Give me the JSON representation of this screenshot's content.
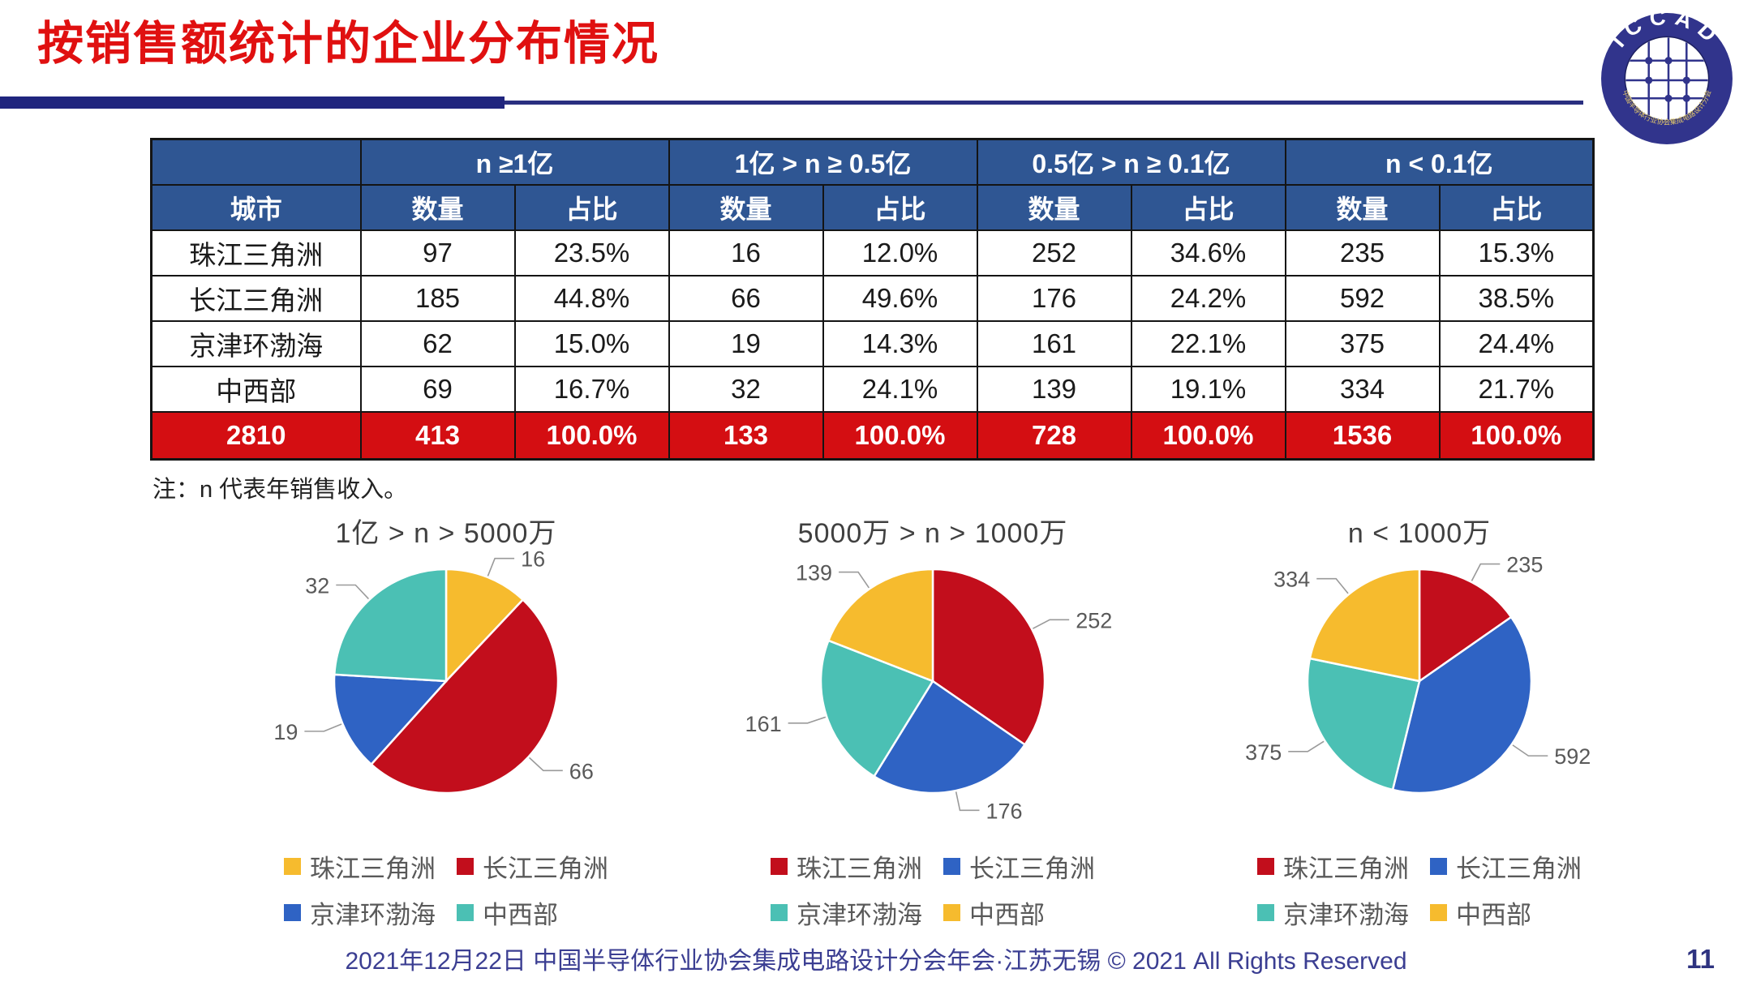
{
  "header": {
    "title": "按销售额统计的企业分布情况",
    "logo_text": "ICCAD",
    "logo_subtitle": "中国半导体行业协会集成电路设计分会"
  },
  "table": {
    "group_headers": [
      "n ≥1亿",
      "1亿 > n ≥ 0.5亿",
      "0.5亿 > n ≥ 0.1亿",
      "n < 0.1亿"
    ],
    "col_city": "城市",
    "col_count": "数量",
    "col_share": "占比",
    "rows": [
      [
        "珠江三角洲",
        "97",
        "23.5%",
        "16",
        "12.0%",
        "252",
        "34.6%",
        "235",
        "15.3%"
      ],
      [
        "长江三角洲",
        "185",
        "44.8%",
        "66",
        "49.6%",
        "176",
        "24.2%",
        "592",
        "38.5%"
      ],
      [
        "京津环渤海",
        "62",
        "15.0%",
        "19",
        "14.3%",
        "161",
        "22.1%",
        "375",
        "24.4%"
      ],
      [
        "中西部",
        "69",
        "16.7%",
        "32",
        "24.1%",
        "139",
        "19.1%",
        "334",
        "21.7%"
      ]
    ],
    "total_row": [
      "2810",
      "413",
      "100.0%",
      "133",
      "100.0%",
      "728",
      "100.0%",
      "1536",
      "100.0%"
    ]
  },
  "note": "注：n 代表年销售收入。",
  "chart_data": [
    {
      "type": "pie",
      "title": "1亿 > n > 5000万",
      "labels": [
        "珠江三角洲",
        "长江三角洲",
        "京津环渤海",
        "中西部"
      ],
      "values": [
        16,
        66,
        19,
        32
      ],
      "colors": [
        "#F6BB2E",
        "#C20E1C",
        "#2F63C4",
        "#4BC0B4"
      ],
      "legend_position": "bottom"
    },
    {
      "type": "pie",
      "title": "5000万 > n > 1000万",
      "labels": [
        "珠江三角洲",
        "长江三角洲",
        "京津环渤海",
        "中西部"
      ],
      "values": [
        252,
        176,
        161,
        139
      ],
      "colors": [
        "#C20E1C",
        "#2F63C4",
        "#4BC0B4",
        "#F6BB2E"
      ],
      "legend_position": "bottom"
    },
    {
      "type": "pie",
      "title": "n < 1000万",
      "labels": [
        "珠江三角洲",
        "长江三角洲",
        "京津环渤海",
        "中西部"
      ],
      "values": [
        235,
        592,
        375,
        334
      ],
      "colors": [
        "#C20E1C",
        "#2F63C4",
        "#4BC0B4",
        "#F6BB2E"
      ],
      "legend_position": "bottom"
    }
  ],
  "footer": {
    "text": "2021年12月22日 中国半导体行业协会集成电路设计分会年会·江苏无锡 © 2021 All Rights Reserved",
    "page": "11"
  },
  "colors": {
    "title_red": "#E01010",
    "header_navy": "#2F5693",
    "total_red": "#D40E12",
    "bar_navy": "#20257E",
    "footer_navy": "#3B3E92",
    "logo_navy": "#31348C"
  }
}
